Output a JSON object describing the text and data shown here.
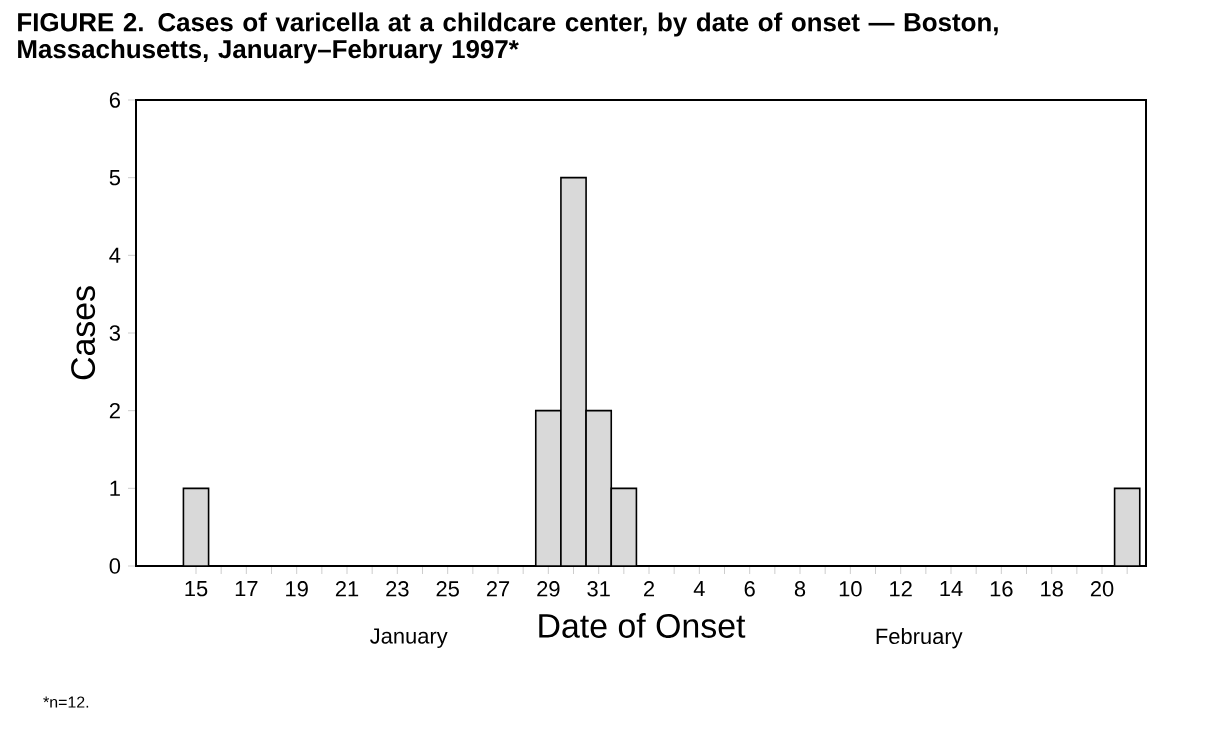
{
  "chart_data": {
    "type": "bar",
    "title": "FIGURE 2. Cases of varicella at a childcare center, by date of onset — Boston, Massachusetts, January–February 1997*",
    "xlabel": "Date of Onset",
    "ylabel": "Cases",
    "categories": [
      "15",
      null,
      "17",
      null,
      "19",
      null,
      "21",
      null,
      "23",
      null,
      "25",
      null,
      "27",
      null,
      "29",
      null,
      "31",
      null,
      "2",
      null,
      "4",
      null,
      "6",
      null,
      "8",
      null,
      "10",
      null,
      "12",
      null,
      "14",
      null,
      "16",
      null,
      "18",
      null,
      "20",
      null
    ],
    "values": [
      1,
      0,
      0,
      0,
      0,
      0,
      0,
      0,
      0,
      0,
      0,
      0,
      0,
      0,
      2,
      5,
      2,
      1,
      0,
      0,
      0,
      0,
      0,
      0,
      0,
      0,
      0,
      0,
      0,
      0,
      0,
      0,
      0,
      0,
      0,
      0,
      0,
      1
    ],
    "color": "#d9d9d9",
    "ylim": [
      0,
      6
    ],
    "yticks": [
      0,
      1,
      2,
      3,
      4,
      5,
      6
    ],
    "grid": false,
    "annotations": [
      "January",
      "February",
      "*n=12."
    ]
  }
}
